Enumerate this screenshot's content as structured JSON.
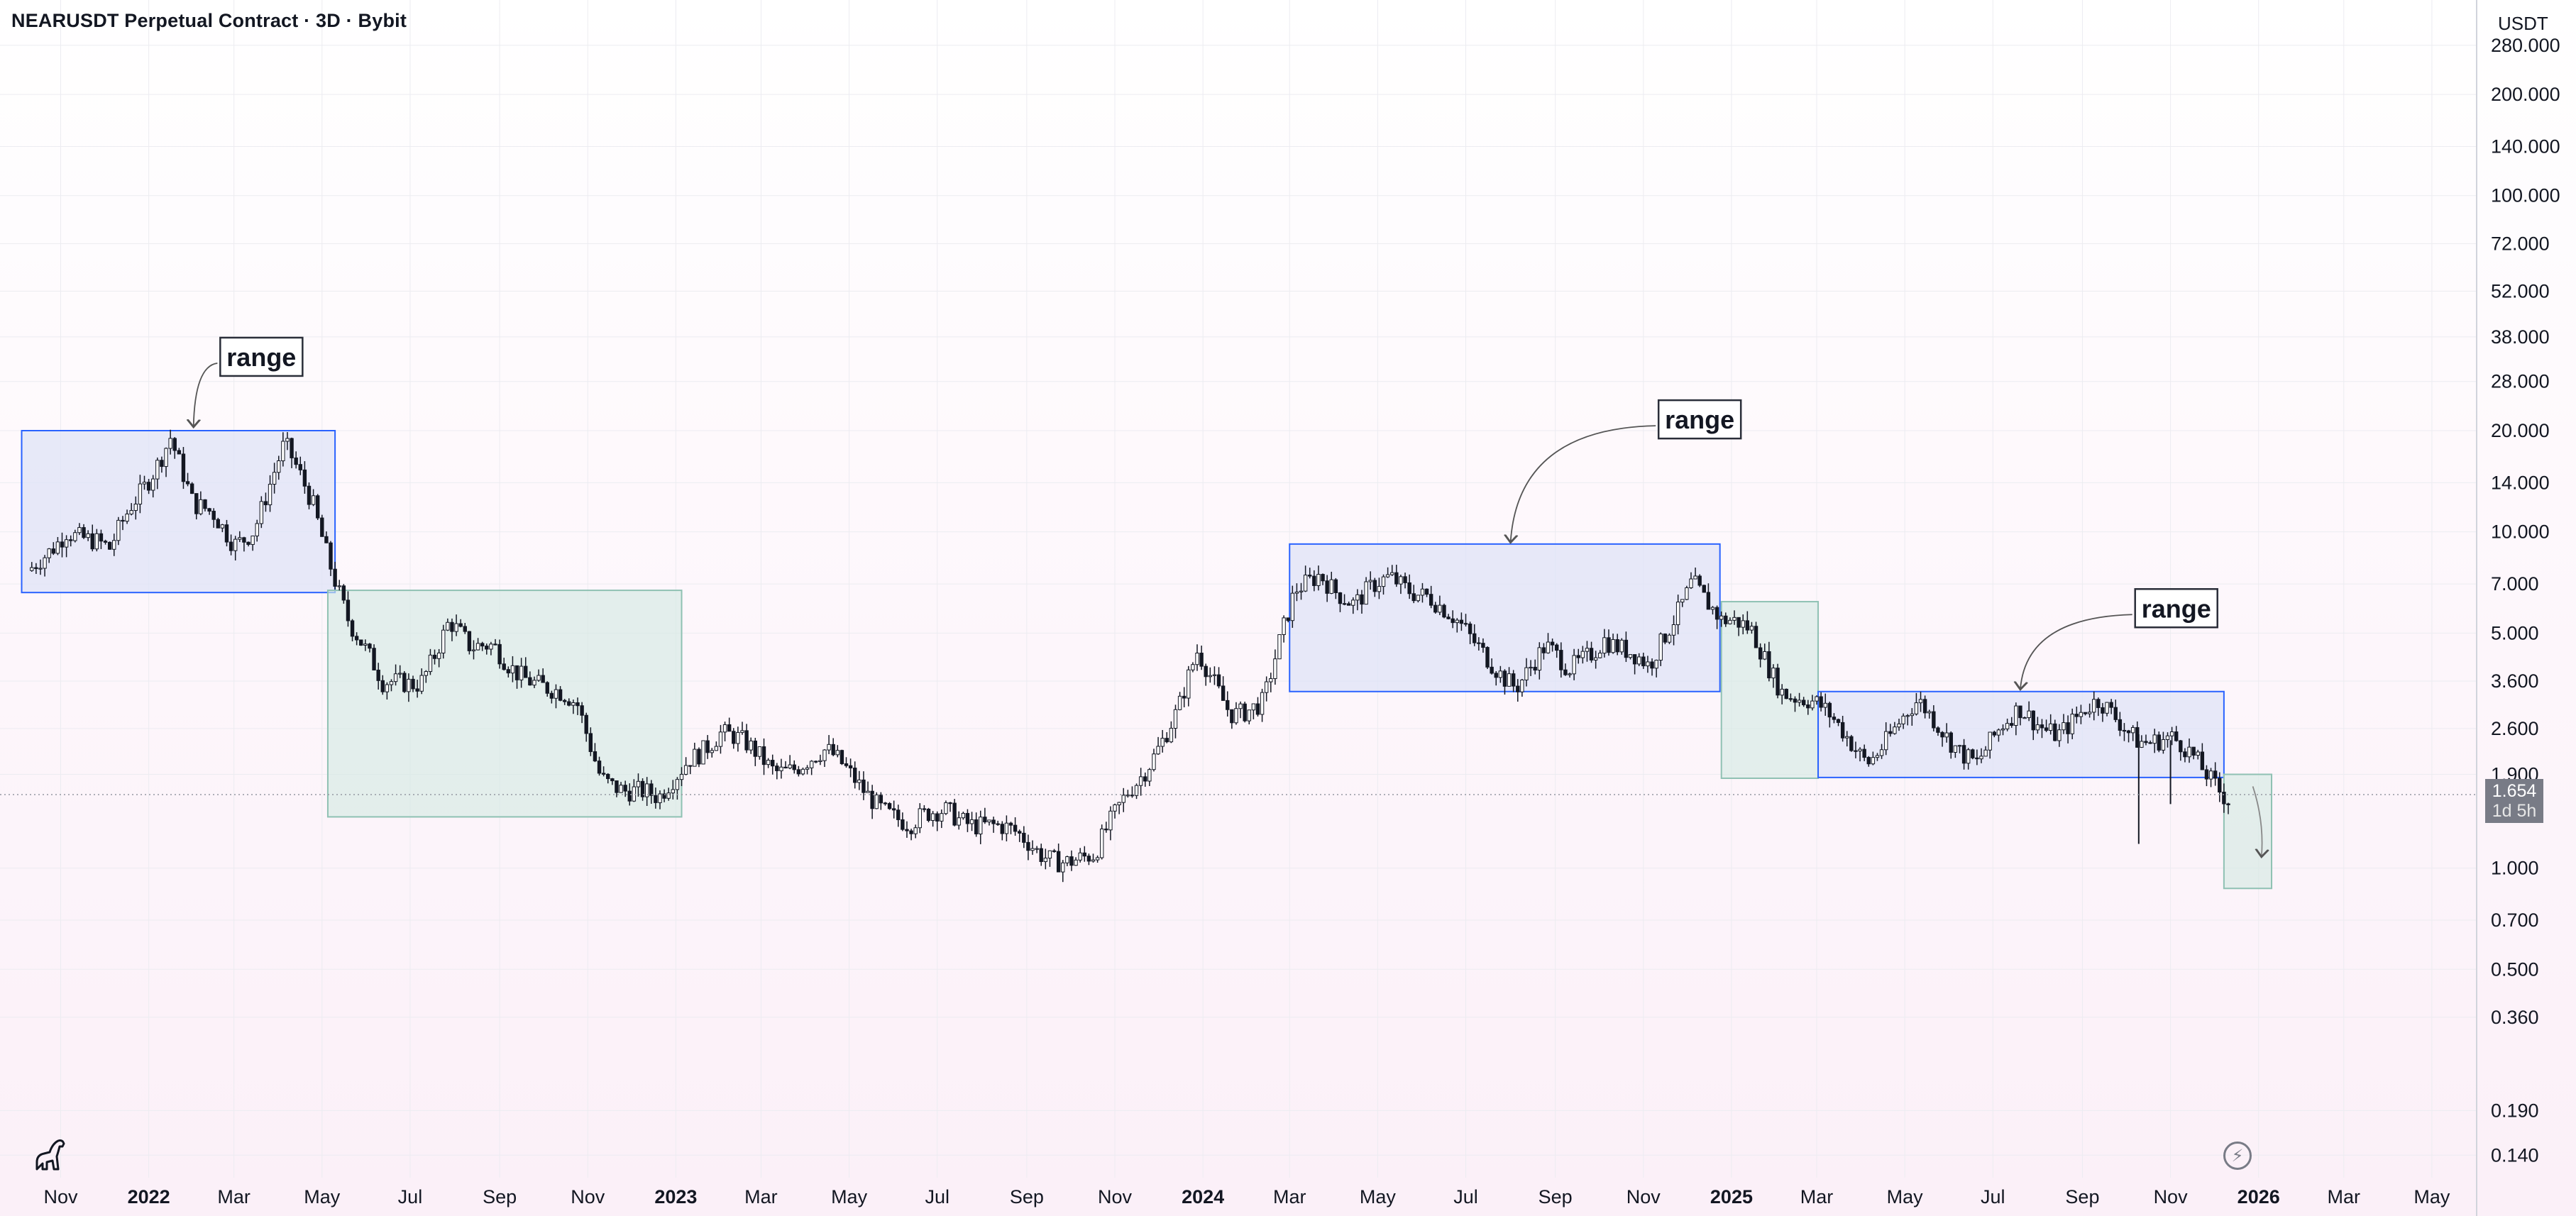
{
  "header": {
    "title": "NEARUSDT Perpetual Contract · 3D · Bybit"
  },
  "axis": {
    "unit_label": "USDT"
  },
  "price_tag": {
    "price": "1.654",
    "countdown": "1d 5h"
  },
  "colors": {
    "range_fill": "#dfe3f7",
    "range_stroke": "#2962ff",
    "drop_fill": "#d6e9e4",
    "drop_stroke": "#8fc1b3",
    "candle": "#131722",
    "grid": "#ececf1",
    "price_tag": "#787b86"
  },
  "icons": {
    "logo": "tradingview-dino-icon",
    "bolt": "lightning-icon"
  },
  "chart_data": {
    "type": "candlestick",
    "title": "NEARUSDT Perpetual Contract · 3D · Bybit",
    "y_scale": "log",
    "y_unit": "USDT",
    "y_range": [
      0.12,
      330
    ],
    "y_ticks": [
      "280.000",
      "200.000",
      "140.000",
      "100.000",
      "72.000",
      "52.000",
      "38.000",
      "28.000",
      "20.000",
      "14.000",
      "10.000",
      "7.000",
      "5.000",
      "3.600",
      "2.600",
      "1.900",
      "1.000",
      "0.700",
      "0.500",
      "0.360",
      "0.190",
      "0.140"
    ],
    "x_range": [
      "2021-09-20",
      "2026-06-01"
    ],
    "x_ticks": [
      {
        "label": "Nov",
        "date": "2021-11-01",
        "bold": false
      },
      {
        "label": "2022",
        "date": "2022-01-01",
        "bold": true
      },
      {
        "label": "Mar",
        "date": "2022-03-01",
        "bold": false
      },
      {
        "label": "May",
        "date": "2022-05-01",
        "bold": false
      },
      {
        "label": "Jul",
        "date": "2022-07-01",
        "bold": false
      },
      {
        "label": "Sep",
        "date": "2022-09-01",
        "bold": false
      },
      {
        "label": "Nov",
        "date": "2022-11-01",
        "bold": false
      },
      {
        "label": "2023",
        "date": "2023-01-01",
        "bold": true
      },
      {
        "label": "Mar",
        "date": "2023-03-01",
        "bold": false
      },
      {
        "label": "May",
        "date": "2023-05-01",
        "bold": false
      },
      {
        "label": "Jul",
        "date": "2023-07-01",
        "bold": false
      },
      {
        "label": "Sep",
        "date": "2023-09-01",
        "bold": false
      },
      {
        "label": "Nov",
        "date": "2023-11-01",
        "bold": false
      },
      {
        "label": "2024",
        "date": "2024-01-01",
        "bold": true
      },
      {
        "label": "Mar",
        "date": "2024-03-01",
        "bold": false
      },
      {
        "label": "May",
        "date": "2024-05-01",
        "bold": false
      },
      {
        "label": "Jul",
        "date": "2024-07-01",
        "bold": false
      },
      {
        "label": "Sep",
        "date": "2024-09-01",
        "bold": false
      },
      {
        "label": "Nov",
        "date": "2024-11-01",
        "bold": false
      },
      {
        "label": "2025",
        "date": "2025-01-01",
        "bold": true
      },
      {
        "label": "Mar",
        "date": "2025-03-01",
        "bold": false
      },
      {
        "label": "May",
        "date": "2025-05-01",
        "bold": false
      },
      {
        "label": "Jul",
        "date": "2025-07-01",
        "bold": false
      },
      {
        "label": "Sep",
        "date": "2025-09-01",
        "bold": false
      },
      {
        "label": "Nov",
        "date": "2025-11-01",
        "bold": false
      },
      {
        "label": "2026",
        "date": "2026-01-01",
        "bold": true
      },
      {
        "label": "Mar",
        "date": "2026-03-01",
        "bold": false
      },
      {
        "label": "May",
        "date": "2026-05-01",
        "bold": false
      }
    ],
    "price_path": [
      [
        "2021-10-12",
        7.6
      ],
      [
        "2021-11-05",
        10.5
      ],
      [
        "2021-12-05",
        8.5
      ],
      [
        "2021-12-20",
        12.0
      ],
      [
        "2022-01-16",
        19.5
      ],
      [
        "2022-02-01",
        11.5
      ],
      [
        "2022-02-15",
        11.0
      ],
      [
        "2022-03-01",
        9.5
      ],
      [
        "2022-03-15",
        10.5
      ],
      [
        "2022-04-05",
        17.5
      ],
      [
        "2022-04-25",
        12.0
      ],
      [
        "2022-05-08",
        8.0
      ],
      [
        "2022-05-20",
        5.5
      ],
      [
        "2022-06-12",
        3.4
      ],
      [
        "2022-07-08",
        3.7
      ],
      [
        "2022-07-28",
        5.4
      ],
      [
        "2022-08-12",
        4.3
      ],
      [
        "2022-08-28",
        4.6
      ],
      [
        "2022-09-10",
        4.1
      ],
      [
        "2022-10-05",
        3.3
      ],
      [
        "2022-10-25",
        3.0
      ],
      [
        "2022-11-10",
        1.95
      ],
      [
        "2022-11-28",
        1.7
      ],
      [
        "2022-12-20",
        1.55
      ],
      [
        "2023-01-10",
        2.2
      ],
      [
        "2023-02-01",
        2.5
      ],
      [
        "2023-03-10",
        2.0
      ],
      [
        "2023-04-15",
        2.15
      ],
      [
        "2023-05-15",
        1.7
      ],
      [
        "2023-06-12",
        1.3
      ],
      [
        "2023-07-08",
        1.5
      ],
      [
        "2023-08-05",
        1.35
      ],
      [
        "2023-09-10",
        1.12
      ],
      [
        "2023-10-18",
        1.05
      ],
      [
        "2023-11-10",
        1.7
      ],
      [
        "2023-12-15",
        2.9
      ],
      [
        "2023-12-28",
        4.2
      ],
      [
        "2024-01-20",
        3.0
      ],
      [
        "2024-02-12",
        3.1
      ],
      [
        "2024-03-05",
        6.5
      ],
      [
        "2024-03-22",
        7.8
      ],
      [
        "2024-04-15",
        6.0
      ],
      [
        "2024-05-10",
        7.2
      ],
      [
        "2024-06-05",
        6.7
      ],
      [
        "2024-07-05",
        4.6
      ],
      [
        "2024-08-05",
        3.6
      ],
      [
        "2024-08-25",
        4.4
      ],
      [
        "2024-09-10",
        3.8
      ],
      [
        "2024-10-05",
        5.0
      ],
      [
        "2024-11-05",
        3.8
      ],
      [
        "2024-12-05",
        7.5
      ],
      [
        "2024-12-25",
        5.3
      ],
      [
        "2025-01-15",
        5.0
      ],
      [
        "2025-02-05",
        3.5
      ],
      [
        "2025-02-28",
        3.0
      ],
      [
        "2025-04-05",
        2.15
      ],
      [
        "2025-05-10",
        3.0
      ],
      [
        "2025-06-20",
        2.1
      ],
      [
        "2025-07-20",
        2.9
      ],
      [
        "2025-08-15",
        2.6
      ],
      [
        "2025-09-12",
        3.0
      ],
      [
        "2025-10-10",
        2.5
      ],
      [
        "2025-11-01",
        2.4
      ],
      [
        "2025-11-25",
        1.9
      ],
      [
        "2025-12-12",
        1.654
      ]
    ],
    "last_price": 1.654,
    "zones": [
      {
        "kind": "range",
        "from": "2021-10-05",
        "to": "2022-05-10",
        "high": 20.0,
        "low": 6.6
      },
      {
        "kind": "drop",
        "from": "2022-05-05",
        "to": "2023-01-05",
        "high": 6.7,
        "low": 1.42
      },
      {
        "kind": "range",
        "from": "2024-03-01",
        "to": "2024-12-24",
        "high": 9.2,
        "low": 3.35
      },
      {
        "kind": "drop",
        "from": "2024-12-25",
        "to": "2025-03-02",
        "high": 6.2,
        "low": 1.85
      },
      {
        "kind": "range",
        "from": "2025-03-02",
        "to": "2025-12-08",
        "high": 3.35,
        "low": 1.86
      },
      {
        "kind": "drop",
        "from": "2025-12-08",
        "to": "2026-01-10",
        "high": 1.9,
        "low": 0.87
      }
    ],
    "annotations": [
      {
        "text": "range",
        "date": "2022-03-20",
        "price": 33.0,
        "arrow_date": "2022-02-01",
        "arrow_price": 20.5
      },
      {
        "text": "range",
        "date": "2024-12-10",
        "price": 21.5,
        "arrow_date": "2024-08-01",
        "arrow_price": 9.3
      },
      {
        "text": "range",
        "date": "2025-11-05",
        "price": 5.9,
        "arrow_date": "2025-07-20",
        "arrow_price": 3.4
      }
    ],
    "drop_arrow": {
      "from_date": "2025-12-28",
      "from_price": 1.75,
      "to_date": "2026-01-03",
      "to_price": 1.08
    }
  }
}
